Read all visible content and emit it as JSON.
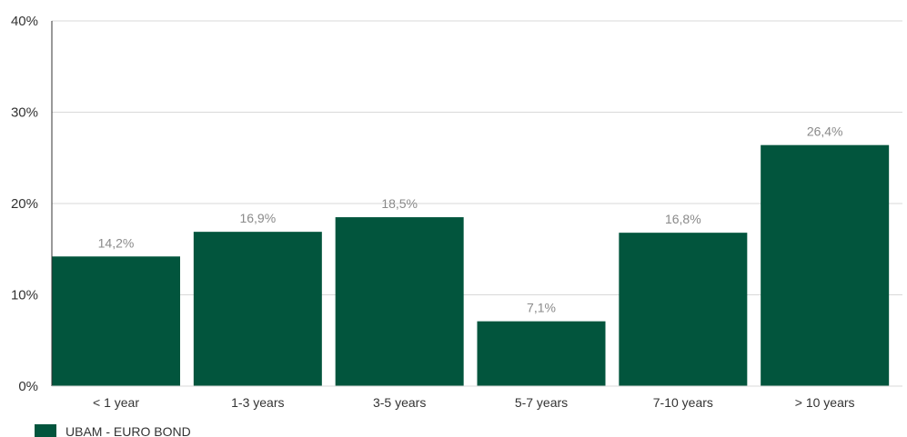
{
  "chart_data": {
    "type": "bar",
    "categories": [
      "< 1 year",
      "1-3 years",
      "3-5 years",
      "5-7 years",
      "7-10 years",
      "> 10 years"
    ],
    "series": [
      {
        "name": "UBAM - EURO BOND",
        "values": [
          14.2,
          16.9,
          18.5,
          7.1,
          16.8,
          26.4
        ],
        "labels": [
          "14,2%",
          "16,9%",
          "18,5%",
          "7,1%",
          "16,8%",
          "26,4%"
        ]
      }
    ],
    "ylim": [
      0,
      40
    ],
    "yticks": [
      0,
      10,
      20,
      30,
      40
    ],
    "ytick_labels": [
      "0%",
      "10%",
      "20%",
      "30%",
      "40%"
    ],
    "grid": true,
    "legend": "bottom-left",
    "colors": {
      "bar": "#02553d",
      "grid": "#d9d9d9",
      "axis": "#333333"
    }
  }
}
